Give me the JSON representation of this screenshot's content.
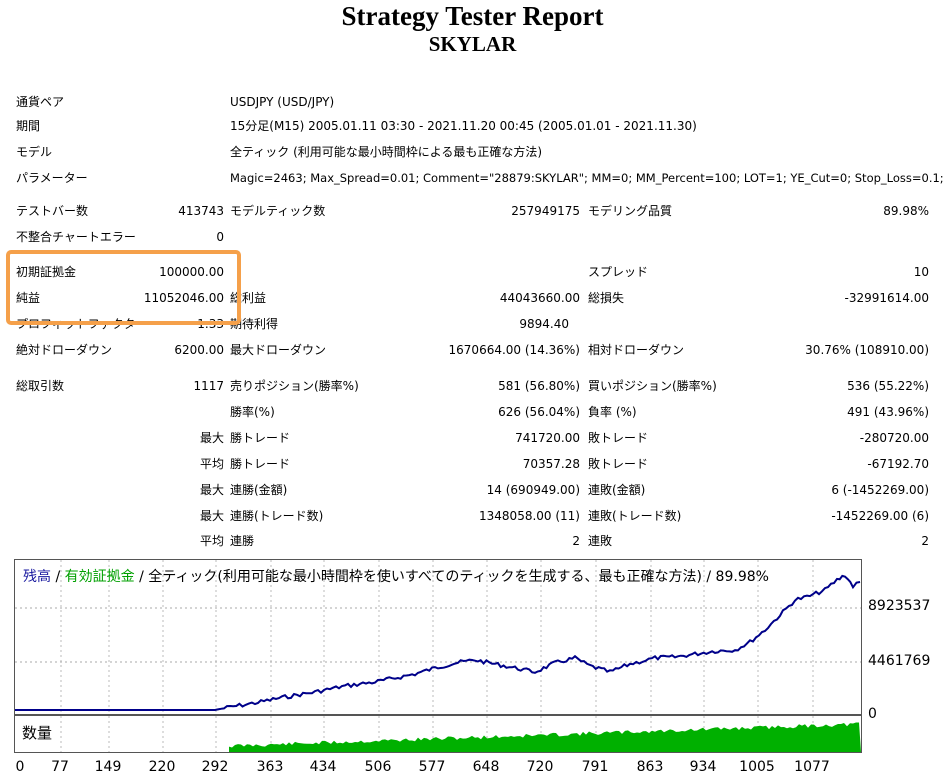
{
  "report": {
    "title": "Strategy Tester Report",
    "subtitle": "SKYLAR"
  },
  "info": [
    {
      "label": "通貨ペア",
      "value": "USDJPY (USD/JPY)"
    },
    {
      "label": "期間",
      "value": "15分足(M15) 2005.01.11 03:30 - 2021.11.20 00:45 (2005.01.01 - 2021.11.30)"
    },
    {
      "label": "モデル",
      "value": "全ティック (利用可能な最小時間枠による最も正確な方法)"
    },
    {
      "label": "パラメーター",
      "value": "Magic=2463; Max_Spread=0.01; Comment=\"28879:SKYLAR\"; MM=0; MM_Percent=100; LOT=1; YE_Cut=0; Stop_Loss=0.1;"
    }
  ],
  "stats": {
    "bars_label": "テストバー数",
    "bars_value": "413743",
    "ticks_label": "モデルティック数",
    "ticks_value": "257949175",
    "quality_label": "モデリング品質",
    "quality_value": "89.98%",
    "mismatch_label": "不整合チャートエラー",
    "mismatch_value": "0",
    "deposit_label": "初期証拠金",
    "deposit_value": "100000.00",
    "spread_label": "スプレッド",
    "spread_value": "10",
    "net_label": "純益",
    "net_value": "11052046.00",
    "gross_profit_label": "総利益",
    "gross_profit_value": "44043660.00",
    "gross_loss_label": "総損失",
    "gross_loss_value": "-32991614.00",
    "pf_label": "プロフィットファクタ",
    "pf_value": "1.33",
    "payoff_label": "期待利得",
    "payoff_value": "9894.40",
    "abs_dd_label": "絶対ドローダウン",
    "abs_dd_value": "6200.00",
    "max_dd_label": "最大ドローダウン",
    "max_dd_value": "1670664.00 (14.36%)",
    "rel_dd_label": "相対ドローダウン",
    "rel_dd_value": "30.76% (108910.00)",
    "trades_label": "総取引数",
    "trades_value": "1117",
    "short_label": "売りポジション(勝率%)",
    "short_value": "581 (56.80%)",
    "long_label": "買いポジション(勝率%)",
    "long_value": "536 (55.22%)",
    "win_rate_label": "勝率(%)",
    "win_rate_value": "626 (56.04%)",
    "loss_rate_label": "負率 (%)",
    "loss_rate_value": "491 (43.96%)"
  },
  "detail_rows": [
    {
      "prefix": "最大",
      "left_label": "勝トレード",
      "left_value": "741720.00",
      "right_label": "敗トレード",
      "right_value": "-280720.00"
    },
    {
      "prefix": "平均",
      "left_label": "勝トレード",
      "left_value": "70357.28",
      "right_label": "敗トレード",
      "right_value": "-67192.70"
    },
    {
      "prefix": "最大",
      "left_label": "連勝(金額)",
      "left_value": "14 (690949.00)",
      "right_label": "連敗(金額)",
      "right_value": "6 (-1452269.00)"
    },
    {
      "prefix": "最大",
      "left_label": "連勝(トレード数)",
      "left_value": "1348058.00 (11)",
      "right_label": "連敗(トレード数)",
      "right_value": "-1452269.00 (6)"
    },
    {
      "prefix": "平均",
      "left_label": "連勝",
      "left_value": "2",
      "right_label": "連敗",
      "right_value": "2"
    }
  ],
  "chart": {
    "legend_balance": "残高",
    "legend_sep1": " / ",
    "legend_equity": "有効証拠金",
    "legend_rest": " / 全ティック(利用可能な最小時間枠を使いすべてのティックを生成する、最も正確な方法) / 89.98%",
    "y_ticks": [
      "8923537",
      "4461769",
      "0"
    ],
    "x_ticks": [
      "0",
      "77",
      "149",
      "220",
      "292",
      "363",
      "434",
      "506",
      "577",
      "648",
      "720",
      "791",
      "863",
      "934",
      "1005",
      "1077"
    ],
    "volume_label": "数量",
    "balance_color": "#00008b",
    "equity_color": "#00aa00",
    "volume_color": "#00b000"
  }
}
